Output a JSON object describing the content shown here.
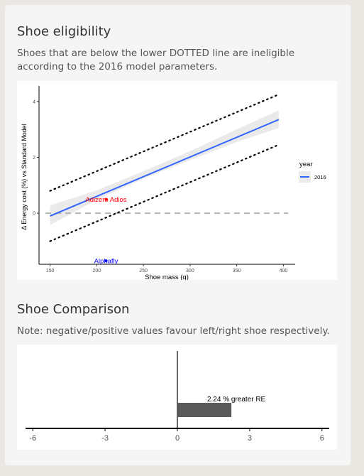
{
  "sections": {
    "eligibility": {
      "title": "Shoe eligibility",
      "description": "Shoes that are below the lower DOTTED line are ineligible according to the 2016 model parameters."
    },
    "comparison": {
      "title": "Shoe Comparison",
      "note": "Note: negative/positive values favour left/right shoe respectively."
    }
  },
  "chart_data": [
    {
      "type": "line",
      "xlabel": "Shoe mass (g)",
      "ylabel": "Δ Energy cost (%) vs Standard Model",
      "xlim": [
        145,
        405
      ],
      "ylim": [
        -1.75,
        4.35
      ],
      "x_ticks": [
        150,
        200,
        250,
        300,
        350,
        400
      ],
      "y_ticks": [
        0,
        2,
        4
      ],
      "legend": {
        "title": "year",
        "entries": [
          "2016"
        ],
        "placement": "right"
      },
      "series": [
        {
          "name": "2016",
          "kind": "fit_line",
          "x": [
            150,
            395
          ],
          "y": [
            -0.1,
            3.35
          ],
          "color": "#3366ff"
        }
      ],
      "confidence_band": {
        "x": [
          150,
          200,
          250,
          300,
          350,
          395
        ],
        "lower": [
          -0.42,
          0.48,
          1.24,
          1.9,
          2.55,
          3.05
        ],
        "upper": [
          0.28,
          0.82,
          1.5,
          2.22,
          3.0,
          3.68
        ]
      },
      "dotted_lines": [
        {
          "x": [
            150,
            395
          ],
          "y": [
            0.8,
            4.25
          ]
        },
        {
          "x": [
            150,
            395
          ],
          "y": [
            -1.0,
            2.45
          ]
        }
      ],
      "reference_line": {
        "y": 0,
        "style": "dashed"
      },
      "points": [
        {
          "label": "Adizero Adios",
          "x": 210,
          "y": 0.5,
          "color": "#ff0000"
        },
        {
          "label": "Alphafly",
          "x": 210,
          "y": -1.7,
          "color": "#0000ff"
        }
      ]
    },
    {
      "type": "bar",
      "orientation": "horizontal",
      "xlim": [
        -6.3,
        6.3
      ],
      "x_ticks": [
        -6,
        -3,
        0,
        3,
        6
      ],
      "values": [
        2.24
      ],
      "bar_color": "#595959",
      "annotation": "2.24 % greater RE"
    }
  ]
}
